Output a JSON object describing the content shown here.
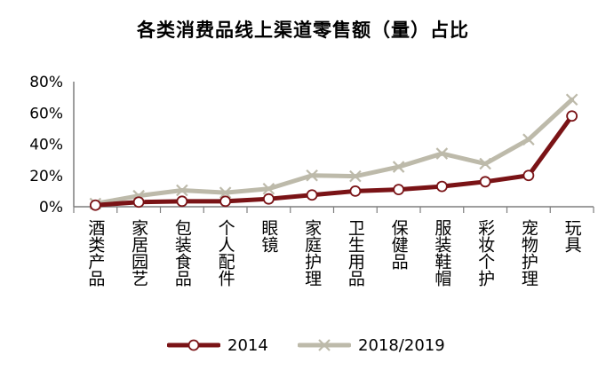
{
  "chart_data": {
    "type": "line",
    "title": "各类消费品线上渠道零售额（量）占比",
    "xlabel": "",
    "ylabel": "",
    "categories": [
      "酒类产品",
      "家居园艺",
      "包装食品",
      "个人配件",
      "眼镜",
      "家庭护理",
      "卫生用品",
      "保健品",
      "服装鞋帽",
      "彩妆个护",
      "宠物护理",
      "玩具"
    ],
    "ylim": [
      0,
      80
    ],
    "yticks": [
      "0%",
      "20%",
      "40%",
      "60%",
      "80%"
    ],
    "grid": false,
    "legend_position": "bottom",
    "series": [
      {
        "name": "2014",
        "color": "#7a1316",
        "marker": "circle",
        "values": [
          1,
          3,
          3.5,
          3.5,
          5,
          7.5,
          10,
          11,
          13,
          16,
          20,
          58
        ]
      },
      {
        "name": "2018/2019",
        "color": "#bdbaaa",
        "marker": "x",
        "values": [
          2,
          7,
          10.5,
          9,
          11.5,
          20,
          19.5,
          25.5,
          34,
          27.5,
          43,
          68.5
        ]
      }
    ]
  }
}
